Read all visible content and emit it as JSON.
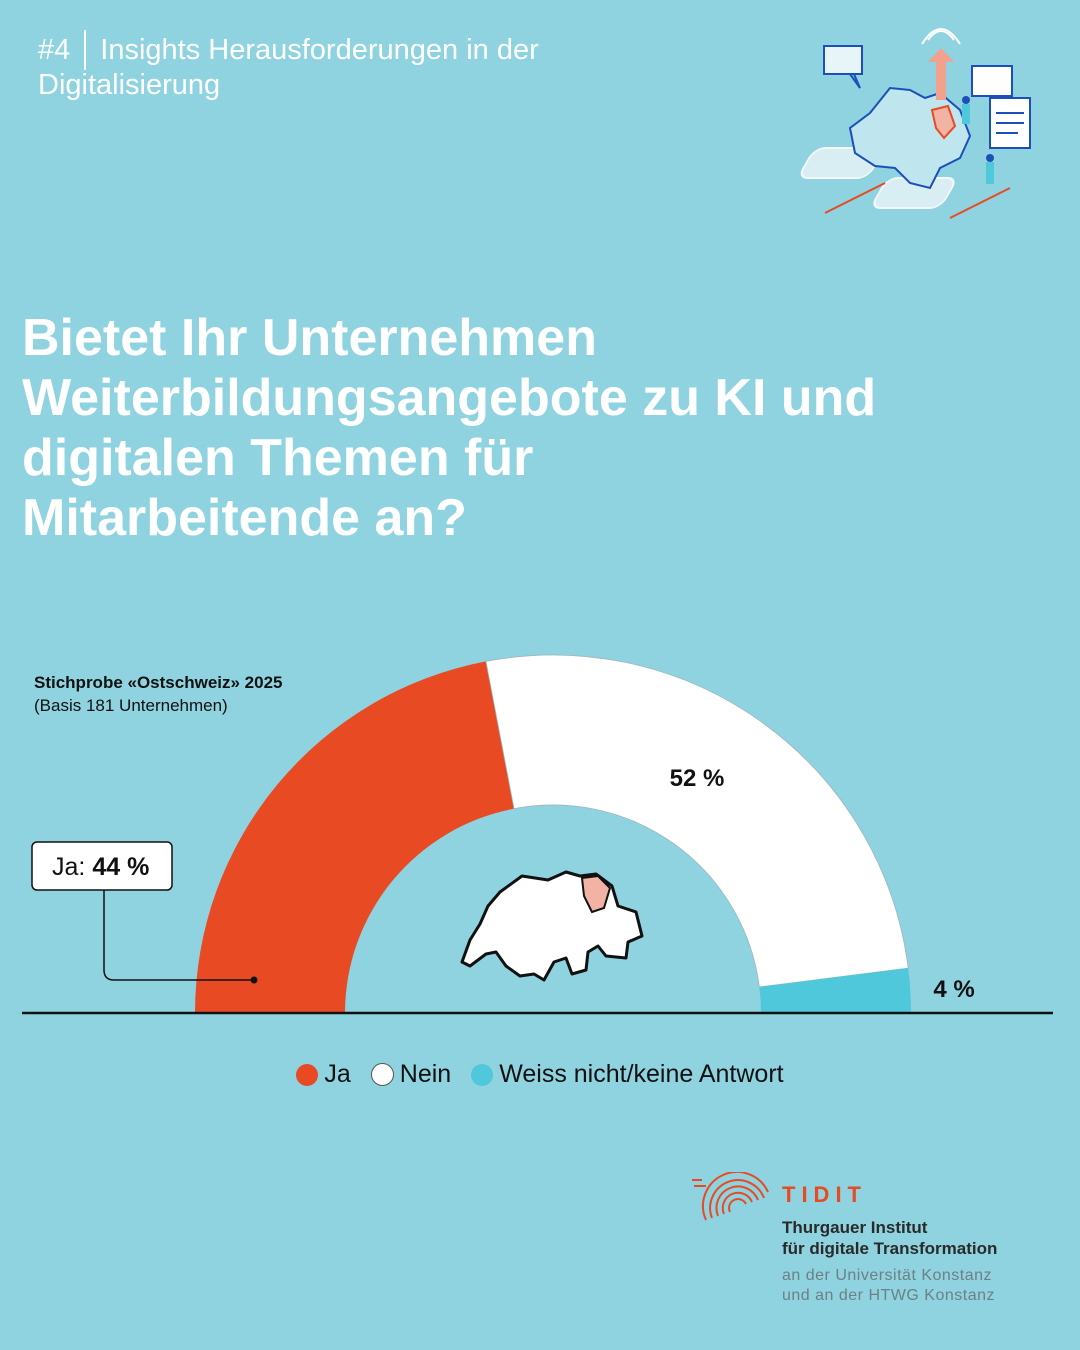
{
  "header": {
    "issue": "#4",
    "title_line1": "Insights Herausforderungen in der",
    "title_line2": "Digitalisierung"
  },
  "question": {
    "line1": "Bietet Ihr Unternehmen",
    "line2": "Weiterbildungsangebote zu KI und",
    "line3": "digitalen Themen für",
    "line4": "Mitarbeitende an?"
  },
  "sample": {
    "title": "Stichprobe «Ostschweiz» 2025",
    "basis": "(Basis 181 Unternehmen)"
  },
  "chart_data": {
    "type": "pie",
    "subtype": "half-donut",
    "categories": [
      "Ja",
      "Nein",
      "Weiss nicht/keine Antwort"
    ],
    "values": [
      44,
      52,
      4
    ],
    "unit": "%",
    "colors": [
      "#e84a23",
      "#ffffff",
      "#4ec8da"
    ],
    "labels": {
      "ja_prefix": "Ja:",
      "ja_value": "44 %",
      "nein_value": "52 %",
      "weiss_value": "4 %"
    },
    "legend_position": "bottom"
  },
  "legend": {
    "items": [
      {
        "label": "Ja",
        "color": "#e84a23"
      },
      {
        "label": "Nein",
        "color": "#ffffff"
      },
      {
        "label": "Weiss nicht/keine Antwort",
        "color": "#4ec8da"
      }
    ]
  },
  "logo": {
    "brand": "TIDIT",
    "name_line1": "Thurgauer Institut",
    "name_line2": "für digitale Transformation",
    "uni_line1": "an der Universität Konstanz",
    "uni_line2": "und an der HTWG Konstanz"
  },
  "colors": {
    "background": "#8ed3df",
    "accent": "#e84a23",
    "highlight_canton": "#f2b3a4"
  }
}
